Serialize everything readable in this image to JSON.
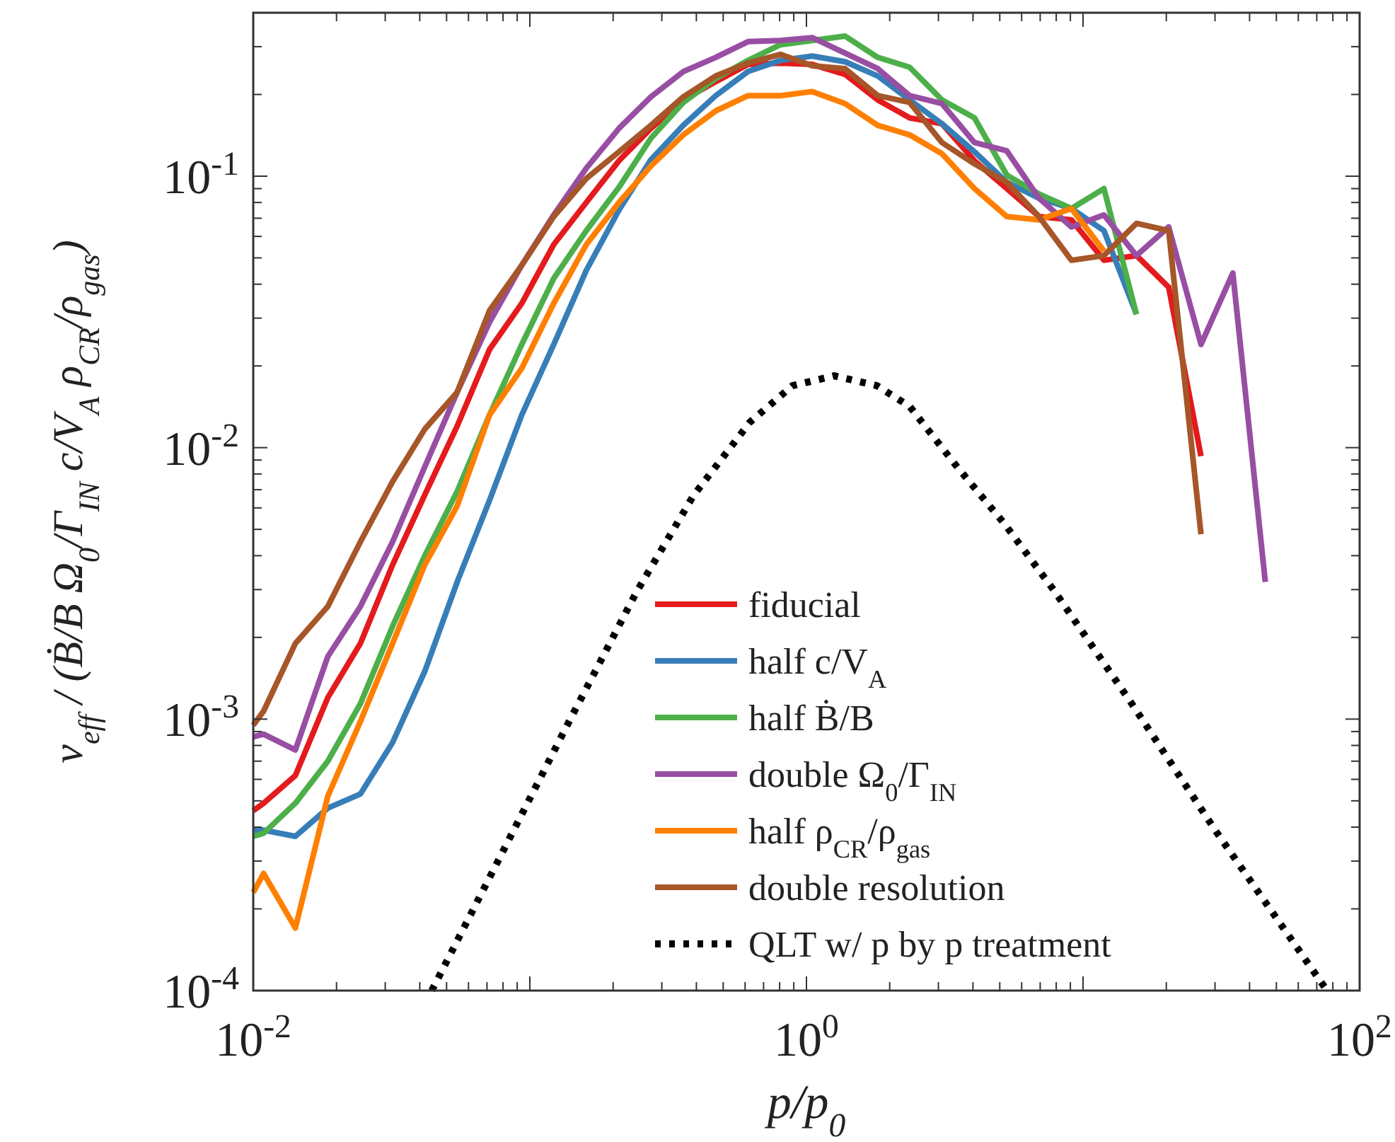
{
  "chart_data": {
    "type": "line",
    "xlabel": "p/p$_{0}$",
    "ylabel": "ν$_{eff}$ / (Ḃ/B Ω$_{0}$/Γ$_{IN}$ c/V$_{A}$ ρ$_{CR}$/ρ$_{gas}$)",
    "log": "xy",
    "grid": false,
    "legend": "bottom right",
    "marker": "none",
    "xlim": [
      0.01,
      100
    ],
    "ylim": [
      0.0001,
      0.4
    ],
    "xticks": [
      {
        "value": 0.01,
        "label": "10$^{-2}$"
      },
      {
        "value": 0.02,
        "label": null
      },
      {
        "value": 0.03,
        "label": null
      },
      {
        "value": 0.04,
        "label": null
      },
      {
        "value": 0.05,
        "label": null
      },
      {
        "value": 0.06,
        "label": null
      },
      {
        "value": 0.07,
        "label": null
      },
      {
        "value": 0.08,
        "label": null
      },
      {
        "value": 0.09,
        "label": null
      },
      {
        "value": 0.1,
        "label": null
      },
      {
        "value": 0.2,
        "label": null
      },
      {
        "value": 0.3,
        "label": null
      },
      {
        "value": 0.4,
        "label": null
      },
      {
        "value": 0.5,
        "label": null
      },
      {
        "value": 0.6,
        "label": null
      },
      {
        "value": 0.7,
        "label": null
      },
      {
        "value": 0.8,
        "label": null
      },
      {
        "value": 0.9,
        "label": null
      },
      {
        "value": 1,
        "label": "10$^{0}$"
      },
      {
        "value": 2,
        "label": null
      },
      {
        "value": 3,
        "label": null
      },
      {
        "value": 4,
        "label": null
      },
      {
        "value": 5,
        "label": null
      },
      {
        "value": 6,
        "label": null
      },
      {
        "value": 7,
        "label": null
      },
      {
        "value": 8,
        "label": null
      },
      {
        "value": 9,
        "label": null
      },
      {
        "value": 10,
        "label": null
      },
      {
        "value": 20,
        "label": null
      },
      {
        "value": 30,
        "label": null
      },
      {
        "value": 40,
        "label": null
      },
      {
        "value": 50,
        "label": null
      },
      {
        "value": 60,
        "label": null
      },
      {
        "value": 70,
        "label": null
      },
      {
        "value": 80,
        "label": null
      },
      {
        "value": 90,
        "label": null
      },
      {
        "value": 100,
        "label": "10$^{2}$"
      }
    ],
    "yticks": [
      {
        "value": 0.0001,
        "label": "10$^{-4}$"
      },
      {
        "value": 0.0002,
        "label": null
      },
      {
        "value": 0.0003,
        "label": null
      },
      {
        "value": 0.0004,
        "label": null
      },
      {
        "value": 0.0005,
        "label": null
      },
      {
        "value": 0.0006,
        "label": null
      },
      {
        "value": 0.0007,
        "label": null
      },
      {
        "value": 0.0008,
        "label": null
      },
      {
        "value": 0.0009,
        "label": null
      },
      {
        "value": 0.001,
        "label": "10$^{-3}$"
      },
      {
        "value": 0.002,
        "label": null
      },
      {
        "value": 0.003,
        "label": null
      },
      {
        "value": 0.004,
        "label": null
      },
      {
        "value": 0.005,
        "label": null
      },
      {
        "value": 0.006,
        "label": null
      },
      {
        "value": 0.007,
        "label": null
      },
      {
        "value": 0.008,
        "label": null
      },
      {
        "value": 0.009,
        "label": null
      },
      {
        "value": 0.01,
        "label": "10$^{-2}$"
      },
      {
        "value": 0.02,
        "label": null
      },
      {
        "value": 0.03,
        "label": null
      },
      {
        "value": 0.04,
        "label": null
      },
      {
        "value": 0.05,
        "label": null
      },
      {
        "value": 0.06,
        "label": null
      },
      {
        "value": 0.07,
        "label": null
      },
      {
        "value": 0.08,
        "label": null
      },
      {
        "value": 0.09,
        "label": null
      },
      {
        "value": 0.1,
        "label": "10$^{-1}$"
      },
      {
        "value": 0.2,
        "label": null
      },
      {
        "value": 0.3,
        "label": null
      }
    ],
    "series": [
      {
        "name": "fiducial",
        "color": "#e41a1c",
        "x": [
          0.01,
          0.0109,
          0.0142,
          0.0186,
          0.0244,
          0.0319,
          0.0417,
          0.0546,
          0.0715,
          0.0935,
          0.122,
          0.16,
          0.21,
          0.274,
          0.359,
          0.47,
          0.615,
          0.805,
          1.05,
          1.38,
          1.81,
          2.36,
          3.09,
          4.05,
          5.3,
          6.93,
          9.08,
          11.9,
          15.6,
          20.4,
          26.7
        ],
        "values": [
          0.00046,
          0.00049,
          0.00062,
          0.0012,
          0.0019,
          0.0037,
          0.0067,
          0.012,
          0.023,
          0.034,
          0.056,
          0.08,
          0.114,
          0.15,
          0.191,
          0.223,
          0.258,
          0.261,
          0.258,
          0.237,
          0.191,
          0.164,
          0.156,
          0.114,
          0.09,
          0.071,
          0.069,
          0.049,
          0.051,
          0.039,
          0.0093
        ]
      },
      {
        "name": "half c/V$_{A}$",
        "color": "#377eb8",
        "x": [
          0.01,
          0.0109,
          0.0142,
          0.0186,
          0.0244,
          0.0319,
          0.0417,
          0.0546,
          0.0715,
          0.0935,
          0.122,
          0.16,
          0.21,
          0.274,
          0.359,
          0.47,
          0.615,
          0.805,
          1.05,
          1.38,
          1.81,
          2.36,
          3.09,
          4.05,
          5.3,
          6.93,
          9.08,
          11.9,
          15.6
        ],
        "values": [
          0.00039,
          0.00039,
          0.00037,
          0.00047,
          0.00053,
          0.00082,
          0.0015,
          0.0032,
          0.0064,
          0.0132,
          0.024,
          0.045,
          0.075,
          0.115,
          0.154,
          0.198,
          0.243,
          0.267,
          0.277,
          0.264,
          0.234,
          0.191,
          0.156,
          0.123,
          0.095,
          0.083,
          0.076,
          0.063,
          0.031
        ]
      },
      {
        "name": "half Ḃ/B",
        "color": "#4daf4a",
        "x": [
          0.01,
          0.0109,
          0.0142,
          0.0186,
          0.0244,
          0.0319,
          0.0417,
          0.0546,
          0.0715,
          0.0935,
          0.122,
          0.16,
          0.21,
          0.274,
          0.359,
          0.47,
          0.615,
          0.805,
          1.05,
          1.38,
          1.81,
          2.36,
          3.09,
          4.05,
          5.3,
          6.93,
          9.08,
          11.9,
          15.6
        ],
        "values": [
          0.00037,
          0.00038,
          0.00049,
          0.0007,
          0.00114,
          0.0022,
          0.004,
          0.0069,
          0.0132,
          0.024,
          0.042,
          0.063,
          0.091,
          0.138,
          0.187,
          0.229,
          0.267,
          0.305,
          0.316,
          0.328,
          0.274,
          0.252,
          0.191,
          0.164,
          0.101,
          0.086,
          0.076,
          0.09,
          0.031
        ]
      },
      {
        "name": "double Ω$_{0}$/Γ$_{IN}$",
        "color": "#984ea3",
        "x": [
          0.01,
          0.0109,
          0.0142,
          0.0186,
          0.0244,
          0.0319,
          0.0417,
          0.0546,
          0.0715,
          0.0935,
          0.122,
          0.16,
          0.21,
          0.274,
          0.359,
          0.47,
          0.615,
          0.805,
          1.05,
          1.38,
          1.81,
          2.36,
          3.09,
          4.05,
          5.3,
          6.93,
          9.08,
          11.9,
          15.6,
          20.4,
          26.7,
          34.8,
          45.6
        ],
        "values": [
          0.00086,
          0.00088,
          0.00077,
          0.0017,
          0.0026,
          0.0045,
          0.0085,
          0.016,
          0.029,
          0.047,
          0.072,
          0.107,
          0.15,
          0.196,
          0.243,
          0.274,
          0.313,
          0.316,
          0.324,
          0.284,
          0.249,
          0.198,
          0.185,
          0.133,
          0.124,
          0.083,
          0.065,
          0.072,
          0.051,
          0.065,
          0.024,
          0.044,
          0.0032
        ]
      },
      {
        "name": "half ρ$_{CR}$/ρ$_{gas}$",
        "color": "#ff7f00",
        "x": [
          0.01,
          0.0109,
          0.0142,
          0.0186,
          0.0244,
          0.0319,
          0.0417,
          0.0546,
          0.0715,
          0.0935,
          0.122,
          0.16,
          0.21,
          0.274,
          0.359,
          0.47,
          0.615,
          0.805,
          1.05,
          1.38,
          1.81,
          2.36,
          3.09,
          4.05,
          5.3,
          6.93,
          9.08,
          11.9
        ],
        "values": [
          0.00023,
          0.00027,
          0.00017,
          0.00052,
          0.00098,
          0.0019,
          0.0037,
          0.0061,
          0.0132,
          0.0196,
          0.034,
          0.056,
          0.08,
          0.109,
          0.142,
          0.174,
          0.198,
          0.198,
          0.205,
          0.185,
          0.154,
          0.142,
          0.121,
          0.09,
          0.071,
          0.069,
          0.076,
          0.053
        ]
      },
      {
        "name": "double resolution",
        "color": "#a65628",
        "x": [
          0.01,
          0.0109,
          0.0142,
          0.0186,
          0.0244,
          0.0319,
          0.0417,
          0.0546,
          0.0715,
          0.0935,
          0.122,
          0.16,
          0.21,
          0.274,
          0.359,
          0.47,
          0.615,
          0.805,
          1.05,
          1.38,
          1.81,
          2.36,
          3.09,
          4.05,
          5.3,
          6.93,
          9.08,
          11.9,
          15.6,
          20.4,
          26.7
        ],
        "values": [
          0.00095,
          0.00107,
          0.0019,
          0.0026,
          0.0045,
          0.0075,
          0.0117,
          0.016,
          0.032,
          0.047,
          0.071,
          0.098,
          0.123,
          0.154,
          0.196,
          0.234,
          0.261,
          0.281,
          0.255,
          0.249,
          0.198,
          0.187,
          0.133,
          0.111,
          0.095,
          0.071,
          0.049,
          0.051,
          0.067,
          0.063,
          0.0048
        ]
      },
      {
        "name": "QLT w/ p by p treatment",
        "color": "#000000",
        "line_style": "dotted",
        "x": [
          0.0442,
          0.075,
          0.135,
          0.243,
          0.39,
          0.624,
          0.889,
          1.26,
          1.8,
          2.36,
          3.52,
          5.2,
          7.85,
          15.0,
          30.4,
          76.2
        ],
        "values": [
          0.0001,
          0.000287,
          0.00093,
          0.00294,
          0.00665,
          0.0124,
          0.0169,
          0.0184,
          0.0169,
          0.0142,
          0.00845,
          0.00524,
          0.00298,
          0.00114,
          0.000383,
          0.0001
        ]
      }
    ]
  }
}
